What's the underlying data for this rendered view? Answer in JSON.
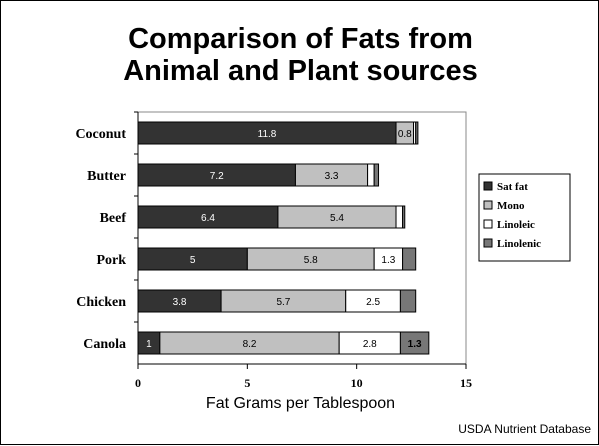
{
  "chart_data": {
    "type": "bar",
    "orientation": "horizontal",
    "stacked": true,
    "title_lines": [
      "Comparison of Fats from",
      "Animal and Plant sources"
    ],
    "xlabel": "Fat Grams per Tablespoon",
    "ylabel": "",
    "xlim": [
      0,
      15
    ],
    "xticks": [
      "0",
      "5",
      "10",
      "15"
    ],
    "grid": false,
    "legend_position": "right",
    "categories": [
      "Coconut",
      "Butter",
      "Beef",
      "Pork",
      "Chicken",
      "Canola"
    ],
    "series": [
      {
        "name": "Sat fat",
        "color": "#333333",
        "label_color": "#ffffff",
        "values": [
          11.8,
          7.2,
          6.4,
          5,
          3.8,
          1
        ],
        "labels": [
          "11.8",
          "7.2",
          "6.4",
          "5",
          "3.8",
          "1"
        ]
      },
      {
        "name": "Mono",
        "color": "#c0c0c0",
        "label_color": "#000000",
        "values": [
          0.8,
          3.3,
          5.4,
          5.8,
          5.7,
          8.2
        ],
        "labels": [
          "0.8",
          "3.3",
          "5.4",
          "5.8",
          "5.7",
          "8.2"
        ]
      },
      {
        "name": "Linoleic",
        "color": "#ffffff",
        "label_color": "#000000",
        "values": [
          0.1,
          0.3,
          0.3,
          1.3,
          2.5,
          2.8
        ],
        "labels": [
          "",
          "",
          "",
          "1.3",
          "2.5",
          "2.8"
        ]
      },
      {
        "name": "Linolenic",
        "color": "#777777",
        "label_color": "#000000",
        "values": [
          0.1,
          0.2,
          0.1,
          0.6,
          0.7,
          1.3
        ],
        "labels": [
          "",
          "",
          "",
          "",
          "",
          "1.3"
        ]
      }
    ],
    "source": "USDA Nutrient Database"
  }
}
